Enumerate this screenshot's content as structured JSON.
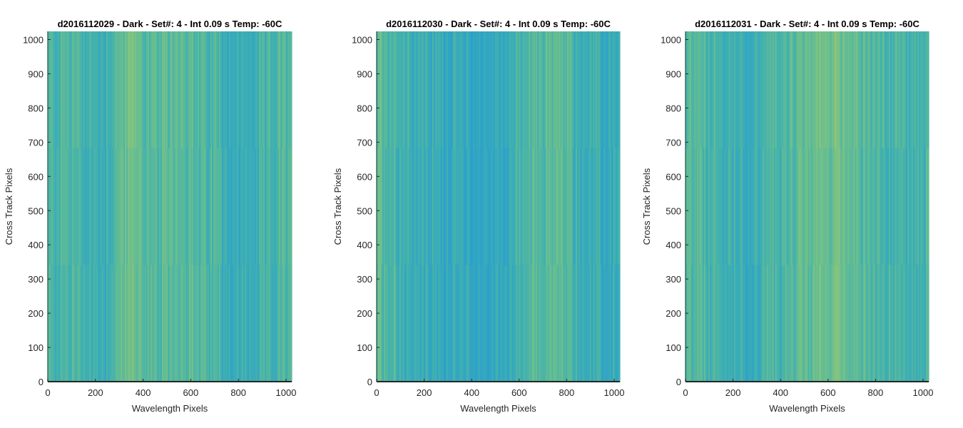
{
  "colormap_colors": [
    "#2a9fce",
    "#3fb0b1",
    "#6cbf8c",
    "#9ec873"
  ],
  "chart_data": [
    {
      "type": "heatmap",
      "title": "d2016112029 - Dark - Set#: 4 - Int 0.09 s Temp: -60C",
      "xlabel": "Wavelength Pixels",
      "ylabel": "Cross Track Pixels",
      "xlim": [
        0,
        1024
      ],
      "ylim": [
        0,
        1024
      ],
      "xticks": [
        0,
        200,
        400,
        600,
        800,
        1000
      ],
      "yticks": [
        0,
        100,
        200,
        300,
        400,
        500,
        600,
        700,
        800,
        900,
        1000
      ],
      "xtick_labels": [
        "0",
        "200",
        "400",
        "600",
        "800",
        "1000"
      ],
      "ytick_labels": [
        "0",
        "100",
        "200",
        "300",
        "400",
        "500",
        "600",
        "700",
        "800",
        "900",
        "1000"
      ],
      "column_profile": [
        0.45,
        0.45,
        0.52,
        0.5,
        0.42,
        0.38,
        0.36,
        0.42,
        0.58,
        0.68,
        0.72,
        0.6,
        0.5,
        0.5,
        0.6,
        0.66,
        0.6,
        0.5,
        0.45,
        0.5,
        0.42,
        0.3,
        0.26,
        0.3,
        0.32,
        0.38,
        0.45,
        0.5,
        0.45
      ]
    },
    {
      "type": "heatmap",
      "title": "d2016112030 - Dark - Set#: 4 - Int 0.09 s Temp: -60C",
      "xlabel": "Wavelength Pixels",
      "ylabel": "Cross Track Pixels",
      "xlim": [
        0,
        1024
      ],
      "ylim": [
        0,
        1024
      ],
      "xticks": [
        0,
        200,
        400,
        600,
        800,
        1000
      ],
      "yticks": [
        0,
        100,
        200,
        300,
        400,
        500,
        600,
        700,
        800,
        900,
        1000
      ],
      "xtick_labels": [
        "0",
        "200",
        "400",
        "600",
        "800",
        "1000"
      ],
      "ytick_labels": [
        "0",
        "100",
        "200",
        "300",
        "400",
        "500",
        "600",
        "700",
        "800",
        "900",
        "1000"
      ],
      "column_profile": [
        0.6,
        0.58,
        0.5,
        0.42,
        0.36,
        0.34,
        0.3,
        0.28,
        0.3,
        0.26,
        0.22,
        0.2,
        0.18,
        0.2,
        0.22,
        0.3,
        0.38,
        0.45,
        0.5,
        0.55,
        0.62,
        0.6,
        0.52,
        0.42,
        0.34,
        0.28,
        0.24,
        0.28,
        0.3
      ]
    },
    {
      "type": "heatmap",
      "title": "d2016112031 - Dark - Set#: 4 - Int 0.09 s Temp: -60C",
      "xlabel": "Wavelength Pixels",
      "ylabel": "Cross Track Pixels",
      "xlim": [
        0,
        1024
      ],
      "ylim": [
        0,
        1024
      ],
      "xticks": [
        0,
        200,
        400,
        600,
        800,
        1000
      ],
      "yticks": [
        0,
        100,
        200,
        300,
        400,
        500,
        600,
        700,
        800,
        900,
        1000
      ],
      "xtick_labels": [
        "0",
        "200",
        "400",
        "600",
        "800",
        "1000"
      ],
      "ytick_labels": [
        "0",
        "100",
        "200",
        "300",
        "400",
        "500",
        "600",
        "700",
        "800",
        "900",
        "1000"
      ],
      "column_profile": [
        0.5,
        0.52,
        0.48,
        0.42,
        0.4,
        0.36,
        0.34,
        0.32,
        0.36,
        0.42,
        0.46,
        0.5,
        0.55,
        0.58,
        0.62,
        0.68,
        0.72,
        0.76,
        0.72,
        0.66,
        0.6,
        0.55,
        0.5,
        0.45,
        0.42,
        0.4,
        0.42,
        0.45,
        0.45
      ]
    }
  ]
}
